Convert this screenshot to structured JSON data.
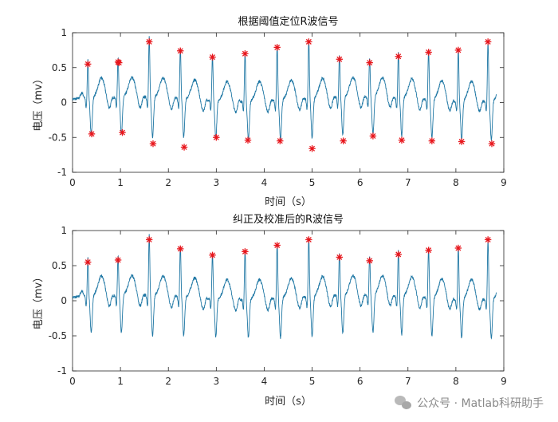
{
  "chart_data": [
    {
      "type": "line",
      "title": "根据阈值定位R波信号",
      "xlabel": "时间（s）",
      "ylabel": "电压（mv）",
      "xlim": [
        0,
        9
      ],
      "ylim": [
        -1,
        1
      ],
      "xticks": [
        "0",
        "1",
        "2",
        "3",
        "4",
        "5",
        "6",
        "7",
        "8",
        "9"
      ],
      "yticks": [
        "-1",
        "-0.5",
        "0",
        "0.5",
        "1"
      ],
      "grid": false,
      "line_color": "#1f77a4",
      "marker_color": "#e8161c",
      "series": [
        {
          "name": "",
          "r_peaks_x": [
            0.32,
            0.95,
            1.6,
            2.25,
            2.92,
            3.6,
            4.27,
            4.93,
            5.57,
            6.2,
            6.8,
            7.43,
            8.05,
            8.67
          ],
          "r_peaks_y": [
            0.55,
            0.58,
            0.87,
            0.74,
            0.65,
            0.7,
            0.79,
            0.87,
            0.62,
            0.57,
            0.66,
            0.72,
            0.75,
            0.87
          ]
        }
      ],
      "markers": {
        "upper": [
          {
            "x": 0.32,
            "y": 0.55
          },
          {
            "x": 0.95,
            "y": 0.58
          },
          {
            "x": 0.97,
            "y": 0.57
          },
          {
            "x": 1.6,
            "y": 0.87
          },
          {
            "x": 2.25,
            "y": 0.74
          },
          {
            "x": 2.92,
            "y": 0.65
          },
          {
            "x": 3.6,
            "y": 0.7
          },
          {
            "x": 4.27,
            "y": 0.79
          },
          {
            "x": 4.93,
            "y": 0.87
          },
          {
            "x": 5.57,
            "y": 0.62
          },
          {
            "x": 6.2,
            "y": 0.57
          },
          {
            "x": 6.8,
            "y": 0.66
          },
          {
            "x": 7.43,
            "y": 0.72
          },
          {
            "x": 8.05,
            "y": 0.75
          },
          {
            "x": 8.67,
            "y": 0.87
          }
        ],
        "lower": [
          {
            "x": 0.4,
            "y": -0.45
          },
          {
            "x": 1.04,
            "y": -0.43
          },
          {
            "x": 1.68,
            "y": -0.59
          },
          {
            "x": 2.33,
            "y": -0.64
          },
          {
            "x": 3.0,
            "y": -0.5
          },
          {
            "x": 3.66,
            "y": -0.54
          },
          {
            "x": 4.33,
            "y": -0.55
          },
          {
            "x": 5.0,
            "y": -0.66
          },
          {
            "x": 5.65,
            "y": -0.55
          },
          {
            "x": 6.27,
            "y": -0.48
          },
          {
            "x": 6.87,
            "y": -0.54
          },
          {
            "x": 7.5,
            "y": -0.55
          },
          {
            "x": 8.12,
            "y": -0.56
          },
          {
            "x": 8.75,
            "y": -0.59
          }
        ]
      }
    },
    {
      "type": "line",
      "title": "纠正及校准后的R波信号",
      "xlabel": "时间（s）",
      "ylabel": "电压（mv）",
      "xlim": [
        0,
        9
      ],
      "ylim": [
        -1,
        1
      ],
      "xticks": [
        "0",
        "1",
        "2",
        "3",
        "4",
        "5",
        "6",
        "7",
        "8",
        "9"
      ],
      "yticks": [
        "-1",
        "-0.5",
        "0",
        "0.5",
        "1"
      ],
      "grid": false,
      "line_color": "#1f77a4",
      "marker_color": "#e8161c",
      "series": [
        {
          "name": "",
          "r_peaks_x": [
            0.32,
            0.95,
            1.6,
            2.25,
            2.92,
            3.6,
            4.27,
            4.93,
            5.57,
            6.2,
            6.8,
            7.43,
            8.05,
            8.67
          ],
          "r_peaks_y": [
            0.55,
            0.58,
            0.87,
            0.74,
            0.65,
            0.7,
            0.79,
            0.87,
            0.62,
            0.57,
            0.66,
            0.72,
            0.75,
            0.87
          ]
        }
      ],
      "markers": {
        "upper": [
          {
            "x": 0.32,
            "y": 0.55
          },
          {
            "x": 0.95,
            "y": 0.58
          },
          {
            "x": 1.6,
            "y": 0.87
          },
          {
            "x": 2.25,
            "y": 0.74
          },
          {
            "x": 2.92,
            "y": 0.65
          },
          {
            "x": 3.6,
            "y": 0.7
          },
          {
            "x": 4.27,
            "y": 0.79
          },
          {
            "x": 4.93,
            "y": 0.87
          },
          {
            "x": 5.57,
            "y": 0.62
          },
          {
            "x": 6.2,
            "y": 0.57
          },
          {
            "x": 6.8,
            "y": 0.66
          },
          {
            "x": 7.43,
            "y": 0.72
          },
          {
            "x": 8.05,
            "y": 0.75
          },
          {
            "x": 8.67,
            "y": 0.87
          }
        ],
        "lower": []
      }
    }
  ],
  "watermark": {
    "text": "公众号 · Matlab科研助手",
    "icon": "wechat-icon"
  }
}
